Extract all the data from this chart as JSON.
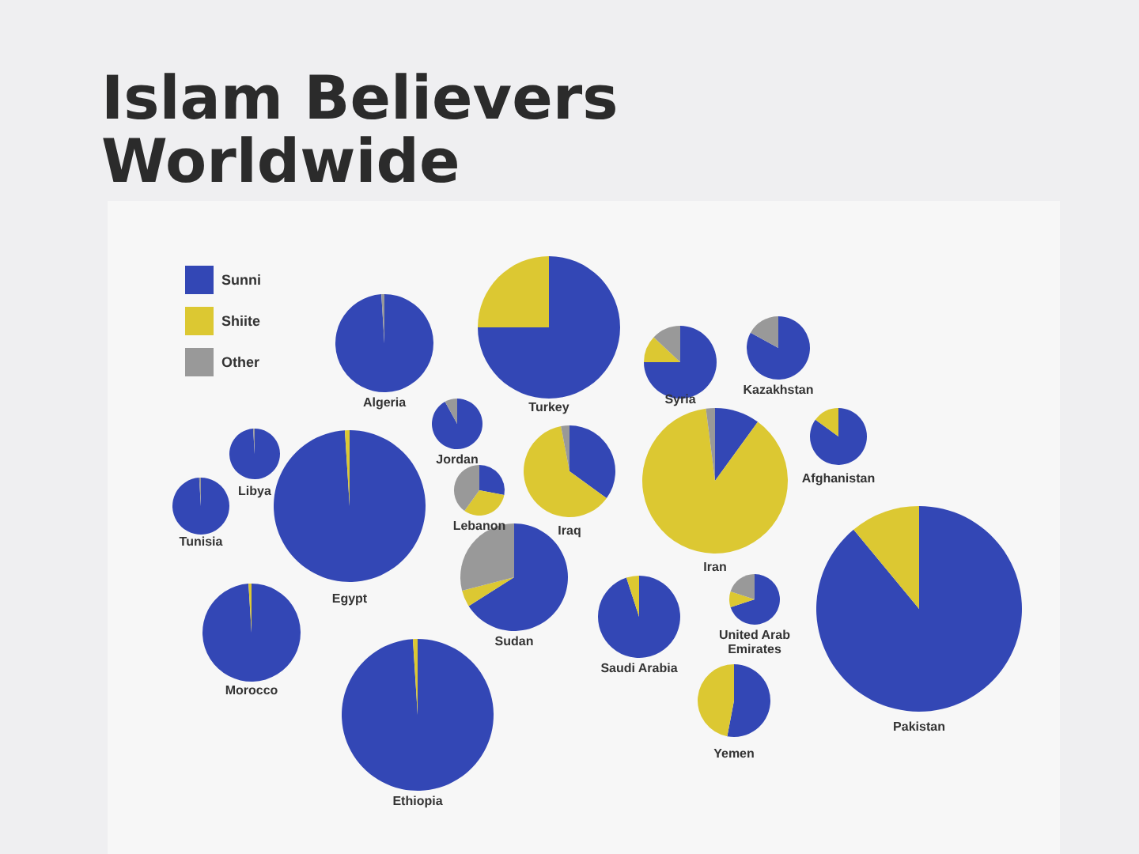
{
  "chart_data": [
    {
      "type": "other",
      "title": "Islam Believers Worldwide"
    },
    {
      "type": "pie",
      "title": "Algeria",
      "categories": [
        "Sunni",
        "Shiite",
        "Other"
      ],
      "values": [
        99,
        0,
        1
      ],
      "colors": [
        "#3347b5",
        "#dcc832",
        "#999999"
      ],
      "legend": "top left"
    },
    {
      "type": "pie",
      "title": "Turkey",
      "categories": [
        null,
        null,
        null
      ],
      "values": [
        75,
        25,
        0
      ],
      "colors": [
        "#3347b5",
        "#dcc832",
        "#999999"
      ]
    },
    {
      "type": "pie",
      "title": "Syria",
      "categories": [
        null,
        null,
        null
      ],
      "values": [
        75,
        12,
        13
      ],
      "colors": [
        "#3347b5",
        "#dcc832",
        "#999999"
      ]
    },
    {
      "type": "pie",
      "title": "Kazakhstan",
      "categories": [
        null,
        null,
        null
      ],
      "values": [
        83,
        0,
        17
      ],
      "colors": [
        "#3347b5",
        "#dcc832",
        "#999999"
      ]
    },
    {
      "type": "pie",
      "title": "Jordan",
      "categories": [
        null,
        null,
        null
      ],
      "values": [
        92,
        0,
        8
      ],
      "colors": [
        "#3347b5",
        "#dcc832",
        "#999999"
      ]
    },
    {
      "type": "pie",
      "title": "Libya",
      "categories": [
        null,
        null,
        null
      ],
      "values": [
        99,
        0,
        1
      ],
      "colors": [
        "#3347b5",
        "#dcc832",
        "#999999"
      ]
    },
    {
      "type": "pie",
      "title": "Egypt",
      "categories": [
        null,
        null,
        null
      ],
      "values": [
        99,
        1,
        0
      ],
      "colors": [
        "#3347b5",
        "#dcc832",
        "#999999"
      ]
    },
    {
      "type": "pie",
      "title": "Tunisia",
      "categories": [
        null,
        null,
        null
      ],
      "values": [
        99,
        0,
        1
      ],
      "colors": [
        "#3347b5",
        "#dcc832",
        "#999999"
      ]
    },
    {
      "type": "pie",
      "title": "Lebanon",
      "categories": [
        null,
        null,
        null
      ],
      "values": [
        28,
        32,
        40
      ],
      "colors": [
        "#3347b5",
        "#dcc832",
        "#999999"
      ]
    },
    {
      "type": "pie",
      "title": "Iraq",
      "categories": [
        null,
        null,
        null
      ],
      "values": [
        35,
        62,
        3
      ],
      "colors": [
        "#3347b5",
        "#dcc832",
        "#999999"
      ]
    },
    {
      "type": "pie",
      "title": "Iran",
      "categories": [
        null,
        null,
        null
      ],
      "values": [
        10,
        88,
        2
      ],
      "colors": [
        "#3347b5",
        "#dcc832",
        "#999999"
      ]
    },
    {
      "type": "pie",
      "title": "Afghanistan",
      "categories": [
        null,
        null,
        null
      ],
      "values": [
        85,
        15,
        0
      ],
      "colors": [
        "#3347b5",
        "#dcc832",
        "#999999"
      ]
    },
    {
      "type": "pie",
      "title": "Sudan",
      "categories": [
        null,
        null,
        null
      ],
      "values": [
        66,
        5,
        29
      ],
      "colors": [
        "#3347b5",
        "#dcc832",
        "#999999"
      ]
    },
    {
      "type": "pie",
      "title": "Saudi Arabia",
      "categories": [
        null,
        null,
        null
      ],
      "values": [
        95,
        5,
        0
      ],
      "colors": [
        "#3347b5",
        "#dcc832",
        "#999999"
      ]
    },
    {
      "type": "pie",
      "title": "United Arab Emirates",
      "categories": [
        null,
        null,
        null
      ],
      "values": [
        70,
        10,
        20
      ],
      "colors": [
        "#3347b5",
        "#dcc832",
        "#999999"
      ]
    },
    {
      "type": "pie",
      "title": "Morocco",
      "categories": [
        null,
        null,
        null
      ],
      "values": [
        99,
        1,
        0
      ],
      "colors": [
        "#3347b5",
        "#dcc832",
        "#999999"
      ]
    },
    {
      "type": "pie",
      "title": "Ethiopia",
      "categories": [
        null,
        null,
        null
      ],
      "values": [
        99,
        1,
        0
      ],
      "colors": [
        "#3347b5",
        "#dcc832",
        "#999999"
      ]
    },
    {
      "type": "pie",
      "title": "Yemen",
      "categories": [
        null,
        null,
        null
      ],
      "values": [
        53,
        47,
        0
      ],
      "colors": [
        "#3347b5",
        "#dcc832",
        "#999999"
      ]
    },
    {
      "type": "pie",
      "title": "Pakistan",
      "categories": [
        null,
        null,
        null
      ],
      "values": [
        89,
        11,
        0
      ],
      "colors": [
        "#3347b5",
        "#dcc832",
        "#999999"
      ]
    }
  ]
}
